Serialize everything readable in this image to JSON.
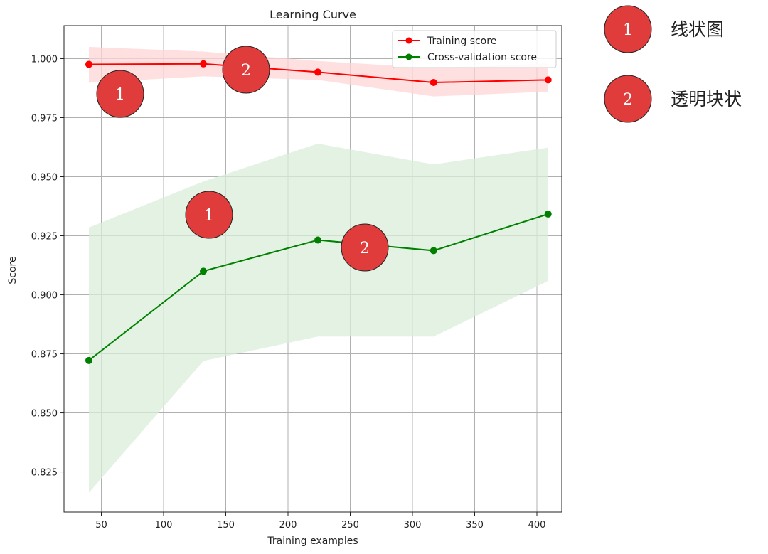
{
  "chart_data": {
    "type": "line",
    "title": "Learning Curve",
    "xlabel": "Training examples",
    "ylabel": "Score",
    "xlim": [
      20,
      420
    ],
    "ylim": [
      0.808,
      1.014
    ],
    "xticks": [
      50,
      100,
      150,
      200,
      250,
      300,
      350,
      400
    ],
    "yticks": [
      0.825,
      0.85,
      0.875,
      0.9,
      0.925,
      0.95,
      0.975,
      1.0
    ],
    "xtick_labels": [
      "50",
      "100",
      "150",
      "200",
      "250",
      "300",
      "350",
      "400"
    ],
    "ytick_labels": [
      "0.825",
      "0.850",
      "0.875",
      "0.900",
      "0.925",
      "0.950",
      "0.975",
      "1.000"
    ],
    "grid": true,
    "legend_position": "top-right",
    "x": [
      40,
      132,
      224,
      317,
      409
    ],
    "series": [
      {
        "name": "Training score",
        "color": "#ff0000",
        "band_color": "#ffd6d6",
        "values": [
          0.9976,
          0.9978,
          0.9943,
          0.9899,
          0.991
        ],
        "band_upper": [
          1.005,
          1.003,
          0.999,
          0.996,
          0.998
        ],
        "band_lower": [
          0.9898,
          0.9925,
          0.991,
          0.984,
          0.986
        ]
      },
      {
        "name": "Cross-validation score",
        "color": "#008000",
        "band_color": "#d9eed9",
        "values": [
          0.8722,
          0.91,
          0.9232,
          0.9187,
          0.9342
        ],
        "band_upper": [
          0.9285,
          0.948,
          0.964,
          0.9552,
          0.9623
        ],
        "band_lower": [
          0.8162,
          0.872,
          0.8823,
          0.8823,
          0.9059
        ]
      }
    ]
  },
  "annotations": {
    "badges": [
      {
        "label": "1",
        "anchor": "training-line"
      },
      {
        "label": "2",
        "anchor": "training-band"
      },
      {
        "label": "1",
        "anchor": "validation-band"
      },
      {
        "label": "2",
        "anchor": "validation-line"
      }
    ],
    "legend": [
      {
        "label": "1",
        "text": "线状图"
      },
      {
        "label": "2",
        "text": "透明块状"
      }
    ],
    "badge_color": "#e03c3c"
  }
}
